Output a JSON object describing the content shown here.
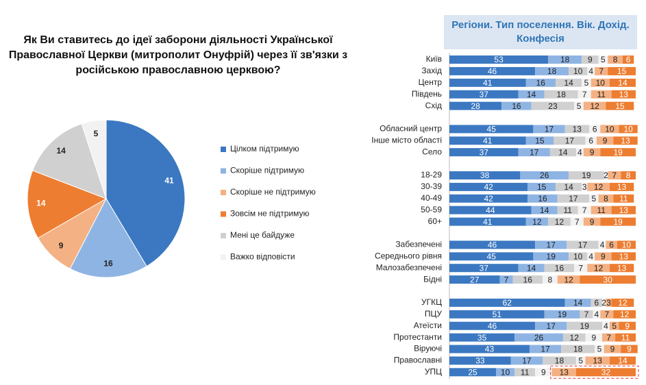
{
  "chart_data": [
    {
      "type": "pie",
      "title": "Як Ви ставитесь до ідеї заборони діяльності Української Православної Церкви (митрополит Онуфрій) через її зв'язки з російською православною церквою?",
      "categories": [
        "Цілком підтримую",
        "Скоріше підтримую",
        "Скоріше не підтримую",
        "Зовсім не підтримую",
        "Мені це байдуже",
        "Важко відповісти"
      ],
      "values": [
        41,
        16,
        9,
        14,
        14,
        5
      ],
      "colors": [
        "#3b78c1",
        "#8eb4e3",
        "#f4b183",
        "#ed7d31",
        "#d0d0d0",
        "#f2f2f2"
      ]
    },
    {
      "type": "bar",
      "orientation": "horizontal",
      "stacked": true,
      "title": "Регіони. Тип поселення. Вік. Дохід. Конфесія",
      "categories": [
        "Київ",
        "Захід",
        "Центр",
        "Південь",
        "Схід",
        null,
        "Обласний центр",
        "Інше місто області",
        "Село",
        null,
        "18-29",
        "30-39",
        "40-49",
        "50-59",
        "60+",
        null,
        "Забезпечені",
        "Середнього рівня",
        "Малозабезпечені",
        "Бідні",
        null,
        "УГКЦ",
        "ПЦУ",
        "Атеїсти",
        "Протестанти",
        "Віруючі",
        "Православні",
        "УПЦ"
      ],
      "xlim": [
        0,
        100
      ],
      "series": [
        {
          "color": "#3b78c1",
          "values": [
            53,
            46,
            41,
            37,
            28,
            null,
            45,
            41,
            37,
            null,
            38,
            42,
            42,
            44,
            41,
            null,
            46,
            45,
            37,
            27,
            null,
            62,
            51,
            46,
            35,
            43,
            33,
            25
          ]
        },
        {
          "color": "#8eb4e3",
          "values": [
            18,
            18,
            16,
            14,
            16,
            null,
            17,
            15,
            17,
            null,
            26,
            15,
            16,
            14,
            12,
            null,
            17,
            19,
            14,
            7,
            null,
            14,
            19,
            17,
            26,
            17,
            17,
            10
          ]
        },
        {
          "color": "#d0d0d0",
          "values": [
            9,
            10,
            14,
            18,
            23,
            null,
            13,
            17,
            14,
            null,
            19,
            14,
            17,
            11,
            12,
            null,
            17,
            10,
            16,
            16,
            null,
            6,
            7,
            19,
            12,
            18,
            18,
            11
          ]
        },
        {
          "color": "#f2f2f2",
          "values": [
            5,
            4,
            5,
            7,
            5,
            null,
            6,
            6,
            4,
            null,
            2,
            3,
            5,
            7,
            7,
            null,
            4,
            4,
            7,
            8,
            null,
            2,
            4,
            4,
            9,
            5,
            5,
            9
          ]
        },
        {
          "color": "#f4b183",
          "values": [
            8,
            7,
            10,
            11,
            12,
            null,
            10,
            9,
            9,
            null,
            7,
            12,
            8,
            11,
            9,
            null,
            6,
            9,
            12,
            12,
            null,
            3,
            7,
            5,
            7,
            9,
            13,
            13
          ]
        },
        {
          "color": "#ed7d31",
          "values": [
            6,
            15,
            14,
            13,
            15,
            null,
            10,
            13,
            19,
            null,
            8,
            13,
            11,
            13,
            19,
            null,
            10,
            13,
            13,
            30,
            null,
            12,
            12,
            9,
            11,
            9,
            14,
            32
          ]
        }
      ]
    }
  ]
}
